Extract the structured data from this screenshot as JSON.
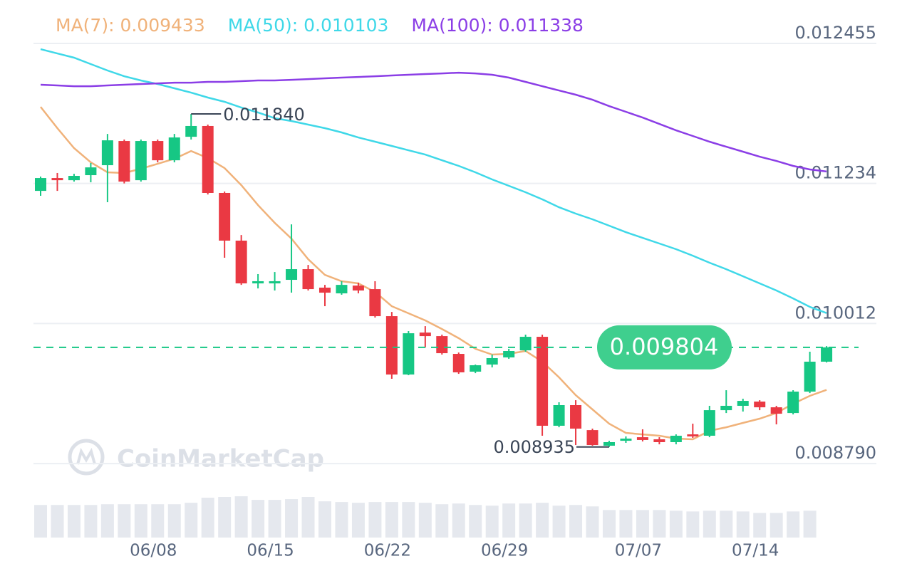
{
  "chart_data": {
    "type": "candlestick",
    "categories": [
      null,
      null,
      null,
      null,
      null,
      null,
      null,
      "06/08",
      null,
      null,
      null,
      null,
      null,
      null,
      "06/15",
      null,
      null,
      null,
      null,
      null,
      null,
      "06/22",
      null,
      null,
      null,
      null,
      null,
      null,
      "06/29",
      null,
      null,
      null,
      null,
      null,
      null,
      null,
      "07/07",
      null,
      null,
      null,
      null,
      null,
      null,
      "07/14",
      null,
      null,
      null,
      null
    ],
    "open": [
      0.011169,
      0.011281,
      0.011262,
      0.011306,
      0.011393,
      0.011604,
      0.011262,
      0.011604,
      0.011436,
      0.011641,
      0.011735,
      0.011151,
      0.010735,
      0.010362,
      0.010362,
      0.010393,
      0.010486,
      0.010325,
      0.010275,
      0.010343,
      0.010312,
      0.010076,
      0.009567,
      0.009933,
      0.009902,
      0.009747,
      0.009592,
      0.009654,
      0.009716,
      0.009778,
      0.009896,
      0.00912,
      0.0093,
      0.009082,
      0.008946,
      0.008989,
      0.00902,
      0.009002,
      0.008977,
      0.009045,
      0.009033,
      0.009256,
      0.009294,
      0.009331,
      0.009281,
      0.009231,
      0.009418,
      0.009679
    ],
    "high": [
      0.011294,
      0.011325,
      0.011318,
      0.011412,
      0.011666,
      0.011617,
      0.011617,
      0.011617,
      0.011666,
      0.01184,
      0.011747,
      0.011163,
      0.010784,
      0.010443,
      0.010461,
      0.010877,
      0.010523,
      0.010349,
      0.010381,
      0.010368,
      0.010381,
      0.010113,
      0.009946,
      0.009989,
      0.009915,
      0.009759,
      0.009654,
      0.009741,
      0.009791,
      0.009915,
      0.009915,
      0.009325,
      0.009343,
      0.009095,
      0.008989,
      0.009027,
      0.009089,
      0.00902,
      0.009045,
      0.009138,
      0.009294,
      0.00943,
      0.009356,
      0.009343,
      0.009294,
      0.00943,
      0.009766,
      0.009815
    ],
    "low": [
      0.011126,
      0.011169,
      0.01125,
      0.011244,
      0.01107,
      0.011234,
      0.01125,
      0.011418,
      0.011418,
      0.011617,
      0.011138,
      0.010586,
      0.010349,
      0.010318,
      0.0103,
      0.010281,
      0.0103,
      0.010163,
      0.010263,
      0.010275,
      0.010064,
      0.00953,
      0.009561,
      0.009803,
      0.009741,
      0.009573,
      0.009579,
      0.009629,
      0.009704,
      0.009766,
      0.009033,
      0.009107,
      0.008952,
      0.008946,
      0.008935,
      0.008971,
      0.008983,
      0.008958,
      0.008958,
      0.009014,
      0.00902,
      0.009231,
      0.009244,
      0.009256,
      0.009132,
      0.009219,
      0.009405,
      0.009672
    ],
    "close": [
      0.011281,
      0.011262,
      0.0113,
      0.011374,
      0.01161,
      0.01125,
      0.011604,
      0.011436,
      0.011635,
      0.011735,
      0.011151,
      0.010735,
      0.010362,
      0.010381,
      0.010381,
      0.010486,
      0.010312,
      0.010281,
      0.010349,
      0.0103,
      0.010076,
      0.009567,
      0.009927,
      0.009902,
      0.009753,
      0.009586,
      0.009648,
      0.00971,
      0.009772,
      0.009896,
      0.00912,
      0.0093,
      0.009095,
      0.008952,
      0.008977,
      0.009008,
      0.008996,
      0.008977,
      0.009033,
      0.009027,
      0.009256,
      0.009294,
      0.009337,
      0.009281,
      0.009225,
      0.009418,
      0.009679,
      0.009804
    ],
    "volume": [
      45,
      45,
      45,
      45,
      46,
      46,
      46,
      46,
      46,
      48,
      55,
      56,
      57,
      52,
      52,
      53,
      56,
      50,
      49,
      48,
      49,
      49,
      49,
      48,
      46,
      47,
      45,
      44,
      47,
      47,
      48,
      44,
      45,
      43,
      38,
      38,
      38,
      38,
      37,
      36,
      37,
      37,
      36,
      34,
      34,
      36,
      37,
      null
    ],
    "up_color": "#16c784",
    "down_color": "#ea3943",
    "volume_color": "#e5e8ee",
    "series": [
      {
        "name": "MA(7): 0.009433",
        "color": "#f0b27a",
        "values": [
          0.011902,
          0.011716,
          0.011542,
          0.011418,
          0.011331,
          0.011325,
          0.011362,
          0.011405,
          0.011449,
          0.011517,
          0.011455,
          0.011368,
          0.011219,
          0.011045,
          0.01089,
          0.010753,
          0.010573,
          0.010436,
          0.010381,
          0.010362,
          0.010287,
          0.010163,
          0.010101,
          0.010039,
          0.009964,
          0.009884,
          0.009791,
          0.009741,
          0.009747,
          0.009772,
          0.009679,
          0.009542,
          0.009387,
          0.009263,
          0.009138,
          0.009058,
          0.009045,
          0.009033,
          0.009008,
          0.009002,
          0.009076,
          0.009107,
          0.009145,
          0.009182,
          0.009231,
          0.009312,
          0.009381,
          0.009433
        ]
      },
      {
        "name": "MA(50): 0.010103",
        "color": "#3fd8e8",
        "values": [
          0.012405,
          0.012368,
          0.012331,
          0.012275,
          0.012219,
          0.012169,
          0.012132,
          0.012101,
          0.012064,
          0.012026,
          0.011983,
          0.011946,
          0.011896,
          0.011853,
          0.011803,
          0.011778,
          0.011747,
          0.011716,
          0.011679,
          0.011635,
          0.011598,
          0.011561,
          0.011523,
          0.011486,
          0.011436,
          0.011387,
          0.011331,
          0.011269,
          0.011213,
          0.011157,
          0.011095,
          0.011026,
          0.010971,
          0.010921,
          0.010865,
          0.010809,
          0.010759,
          0.01071,
          0.01066,
          0.010604,
          0.010542,
          0.010486,
          0.010424,
          0.010362,
          0.0103,
          0.010231,
          0.010157,
          0.010103
        ]
      },
      {
        "name": "MA(100): 0.011338",
        "color": "#8b3ee6",
        "values": [
          0.012095,
          0.012089,
          0.012082,
          0.012082,
          0.012089,
          0.012095,
          0.012101,
          0.012107,
          0.012113,
          0.012113,
          0.01212,
          0.01212,
          0.012126,
          0.012132,
          0.012132,
          0.012138,
          0.012144,
          0.012151,
          0.012157,
          0.012163,
          0.012169,
          0.012176,
          0.012182,
          0.012188,
          0.012194,
          0.0122,
          0.012194,
          0.012182,
          0.012157,
          0.01212,
          0.012082,
          0.012045,
          0.012008,
          0.011964,
          0.011908,
          0.011859,
          0.011809,
          0.011753,
          0.011697,
          0.011648,
          0.011598,
          0.011554,
          0.011511,
          0.011467,
          0.01143,
          0.011387,
          0.011356,
          0.011338
        ]
      }
    ],
    "ylim": [
      0.0086,
      0.0127
    ],
    "yticks": [
      {
        "value": 0.00879,
        "label": "0.008790"
      },
      0.010012,
      0.011234,
      0.012455
    ],
    "grid": true,
    "high_label": "0.011840",
    "low_label": "0.008935",
    "last_price_label": "0.009804",
    "watermark": "CoinMarketCap"
  }
}
